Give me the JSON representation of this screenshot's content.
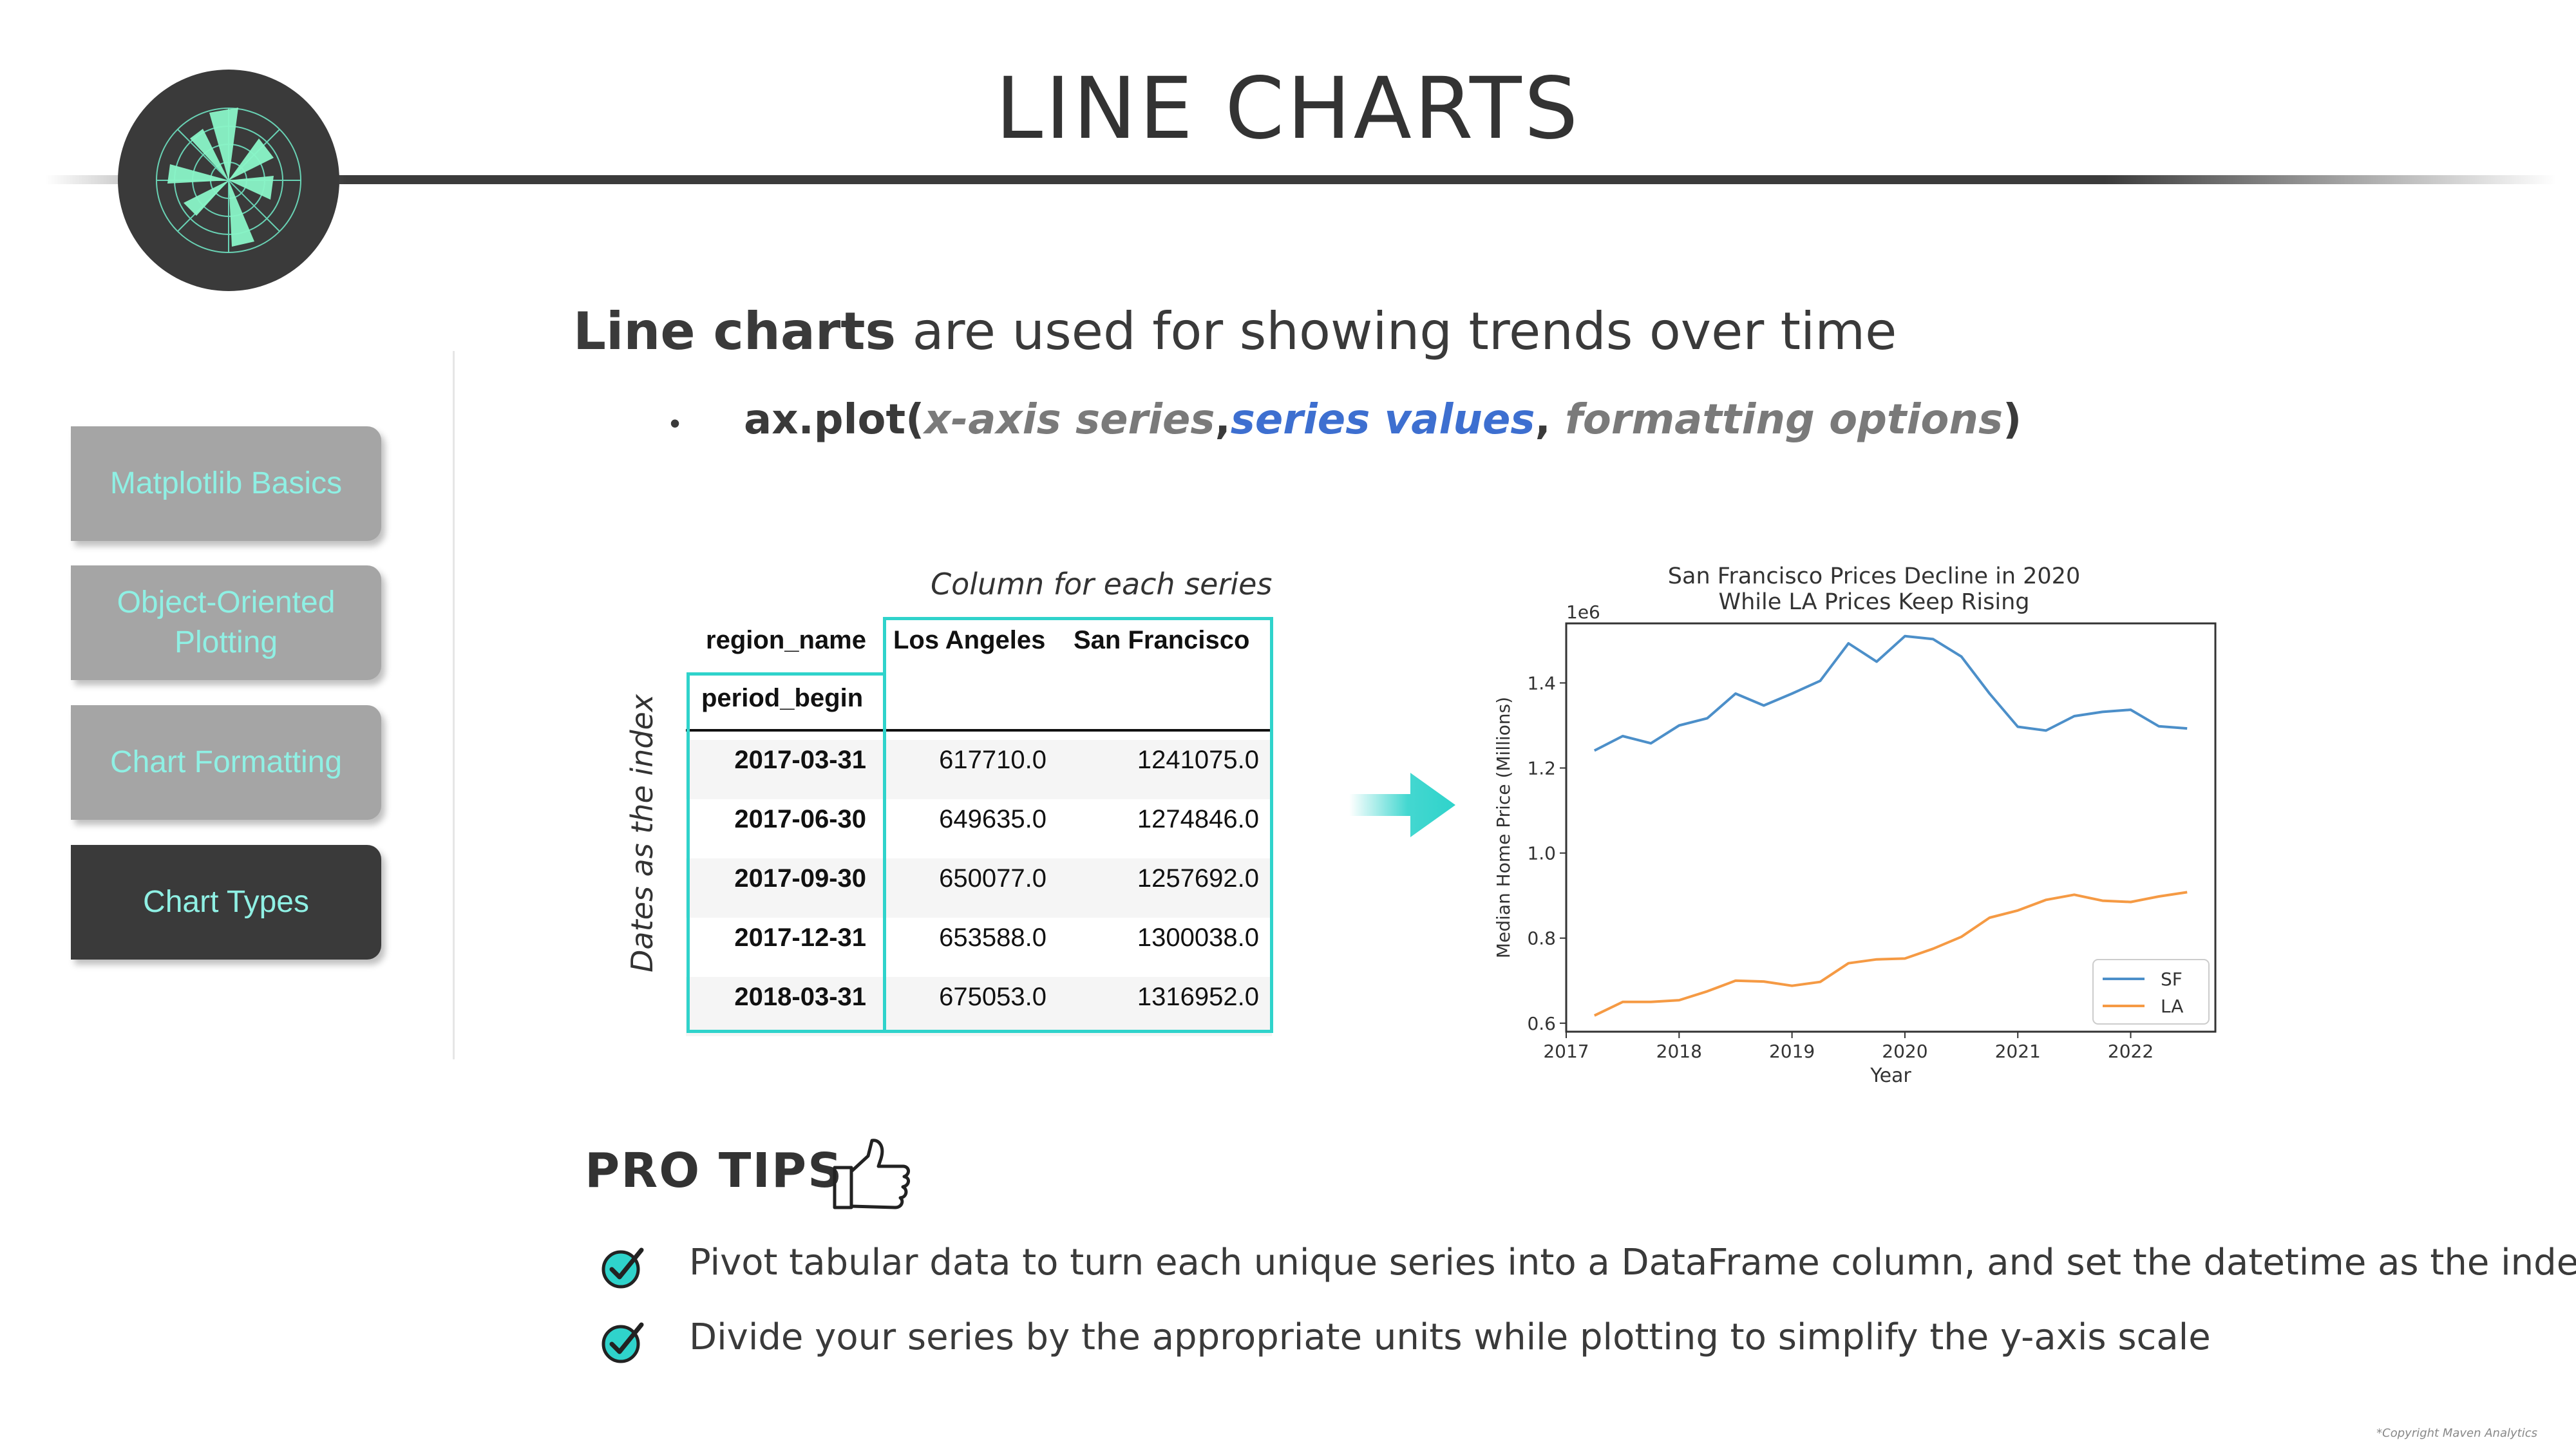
{
  "header": {
    "title": "LINE CHARTS"
  },
  "sidebar": {
    "items": [
      {
        "label": "Matplotlib Basics",
        "active": false
      },
      {
        "label": "Object-Oriented Plotting",
        "active": false
      },
      {
        "label": "Chart Formatting",
        "active": false
      },
      {
        "label": "Chart Types",
        "active": true
      }
    ]
  },
  "main": {
    "headline_bold": "Line charts",
    "headline_rest": " are used for showing trends over time",
    "code": {
      "bullet": "•",
      "prefix": "ax.plot(",
      "arg1": "x-axis series",
      "sep1": ",",
      "arg2": "series values",
      "sep2": ", ",
      "arg3": "formatting options",
      "suffix": ")"
    }
  },
  "table": {
    "column_note": "Column for each series",
    "index_note": "Dates as the index",
    "columns_name": "region_name",
    "index_name": "period_begin",
    "columns": [
      "Los Angeles",
      "San Francisco"
    ],
    "rows": [
      {
        "date": "2017-03-31",
        "la": "617710.0",
        "sf": "1241075.0"
      },
      {
        "date": "2017-06-30",
        "la": "649635.0",
        "sf": "1274846.0"
      },
      {
        "date": "2017-09-30",
        "la": "650077.0",
        "sf": "1257692.0"
      },
      {
        "date": "2017-12-31",
        "la": "653588.0",
        "sf": "1300038.0"
      },
      {
        "date": "2018-03-31",
        "la": "675053.0",
        "sf": "1316952.0"
      }
    ]
  },
  "chart_data": {
    "type": "line",
    "title": "San Francisco Prices Decline in 2020\nWhile LA Prices Keep Rising",
    "xlabel": "Year",
    "ylabel": "Median Home Price (Millions)",
    "y_multiplier": "1e6",
    "xlim": [
      2017.0,
      2022.75
    ],
    "ylim": [
      0.58,
      1.54
    ],
    "x_ticks": [
      2017,
      2018,
      2019,
      2020,
      2021,
      2022
    ],
    "y_ticks": [
      0.6,
      0.8,
      1.0,
      1.2,
      1.4
    ],
    "y_tick_labels": [
      "0.6",
      "0.8",
      "1.0",
      "1.2",
      "1.4"
    ],
    "legend_position": "bottom-right",
    "x": [
      2017.25,
      2017.5,
      2017.75,
      2018.0,
      2018.25,
      2018.5,
      2018.75,
      2019.0,
      2019.25,
      2019.5,
      2019.75,
      2020.0,
      2020.25,
      2020.5,
      2020.75,
      2021.0,
      2021.25,
      2021.5,
      2021.75,
      2022.0,
      2022.25,
      2022.5
    ],
    "series": [
      {
        "name": "SF",
        "color": "#4c8fc9",
        "values": [
          1.241,
          1.275,
          1.258,
          1.3,
          1.317,
          1.375,
          1.347,
          1.375,
          1.405,
          1.493,
          1.45,
          1.51,
          1.503,
          1.462,
          1.375,
          1.297,
          1.288,
          1.322,
          1.332,
          1.337,
          1.298,
          1.293
        ]
      },
      {
        "name": "LA",
        "color": "#f59a44",
        "values": [
          0.618,
          0.65,
          0.65,
          0.654,
          0.675,
          0.7,
          0.698,
          0.688,
          0.697,
          0.741,
          0.75,
          0.752,
          0.775,
          0.803,
          0.848,
          0.865,
          0.89,
          0.902,
          0.888,
          0.885,
          0.898,
          0.908
        ]
      }
    ]
  },
  "pro_tips": {
    "title": "PRO TIPS",
    "tips": [
      "Pivot tabular data to turn each unique series into a DataFrame column, and set the datetime as the index",
      "Divide your series by the appropriate units while plotting to simplify the y-axis scale"
    ]
  },
  "footer": {
    "copyright": "*Copyright Maven Analytics"
  },
  "colors": {
    "accent_teal": "#2fd3cb",
    "nav_inactive": "#a5a5a5",
    "nav_active": "#3a3a3a",
    "nav_text": "#8ff0e4"
  }
}
